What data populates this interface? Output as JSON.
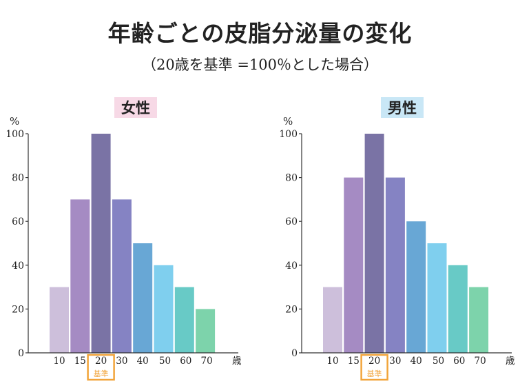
{
  "title": "年齢ごとの皮脂分泌量の変化",
  "subtitle": "（20歳を基準 =100％とした場合）",
  "chart_data": [
    {
      "type": "bar",
      "title": "女性",
      "title_bg": "#f7d9e6",
      "ylabel": "%",
      "xunit": "歳",
      "ylim": [
        0,
        100
      ],
      "yticks": [
        0,
        20,
        40,
        60,
        80,
        100
      ],
      "categories": [
        "10",
        "15",
        "20",
        "30",
        "40",
        "50",
        "60",
        "70"
      ],
      "values": [
        30,
        70,
        100,
        70,
        50,
        40,
        30,
        20
      ],
      "colors": [
        "#cdbfdb",
        "#a58bc3",
        "#7a73a5",
        "#8583c3",
        "#68a7d5",
        "#7fcfee",
        "#68cac6",
        "#7dd3ab"
      ],
      "reference_category": "20",
      "reference_label": "基準",
      "reference_color": "#f2a43a"
    },
    {
      "type": "bar",
      "title": "男性",
      "title_bg": "#c9e7f6",
      "ylabel": "%",
      "xunit": "歳",
      "ylim": [
        0,
        100
      ],
      "yticks": [
        0,
        20,
        40,
        60,
        80,
        100
      ],
      "categories": [
        "10",
        "15",
        "20",
        "30",
        "40",
        "50",
        "60",
        "70"
      ],
      "values": [
        30,
        80,
        100,
        80,
        60,
        50,
        40,
        30
      ],
      "colors": [
        "#cdbfdb",
        "#a58bc3",
        "#7a73a5",
        "#8583c3",
        "#68a7d5",
        "#7fcfee",
        "#68cac6",
        "#7dd3ab"
      ],
      "reference_category": "20",
      "reference_label": "基準",
      "reference_color": "#f2a43a"
    }
  ]
}
